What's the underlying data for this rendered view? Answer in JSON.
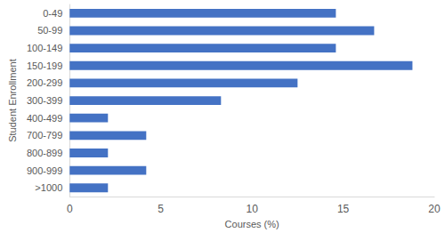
{
  "chart_data": {
    "type": "bar",
    "orientation": "horizontal",
    "x_label": "Courses (%)",
    "y_label": "Student Enrollment",
    "categories": [
      "0-49",
      "50-99",
      "100-149",
      "150-199",
      "200-299",
      "300-399",
      "400-499",
      "700-799",
      "800-899",
      "900-999",
      ">1000"
    ],
    "values": [
      14.6,
      16.7,
      14.6,
      18.8,
      12.5,
      8.3,
      2.1,
      4.2,
      2.1,
      4.2,
      2.1
    ],
    "color": "#4472c4",
    "xlim": [
      0,
      20
    ],
    "xticks": [
      0,
      5,
      10,
      15,
      20
    ],
    "grid": false
  }
}
